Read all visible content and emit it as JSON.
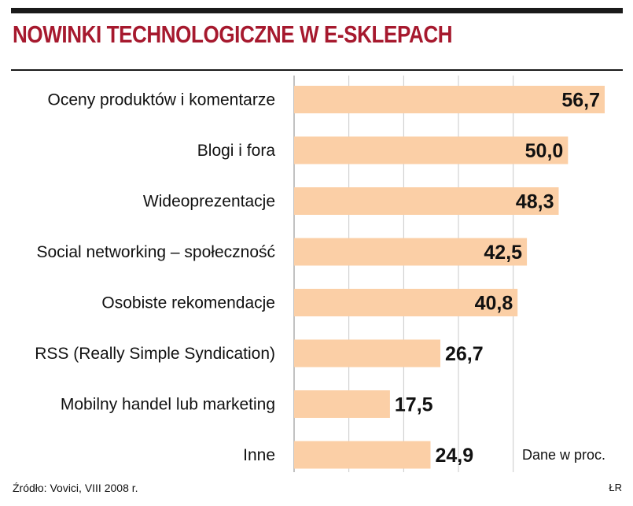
{
  "chart_data": {
    "type": "bar",
    "orientation": "horizontal",
    "title": "NOWINKI TECHNOLOGICZNE W E-SKLEPACH",
    "categories": [
      "Oceny produktów i komentarze",
      "Blogi i fora",
      "Wideoprezentacje",
      "Social networking – społeczność",
      "Osobiste rekomendacje",
      "RSS (Really Simple Syndication)",
      "Mobilny handel lub marketing",
      "Inne"
    ],
    "values": [
      56.7,
      50.0,
      48.3,
      42.5,
      40.8,
      26.7,
      17.5,
      24.9
    ],
    "value_labels": [
      "56,7",
      "50,0",
      "48,3",
      "42,5",
      "40,8",
      "26,7",
      "17,5",
      "24,9"
    ],
    "xlim": [
      0,
      60
    ],
    "grid_ticks": [
      10,
      20,
      30,
      40
    ],
    "unit_note": "Dane w proc.",
    "bar_color": "#fbcfa6",
    "title_color": "#a6192e"
  },
  "footer": {
    "source": "Źródło: Vovici, VIII 2008 r.",
    "credit": "ŁR"
  }
}
